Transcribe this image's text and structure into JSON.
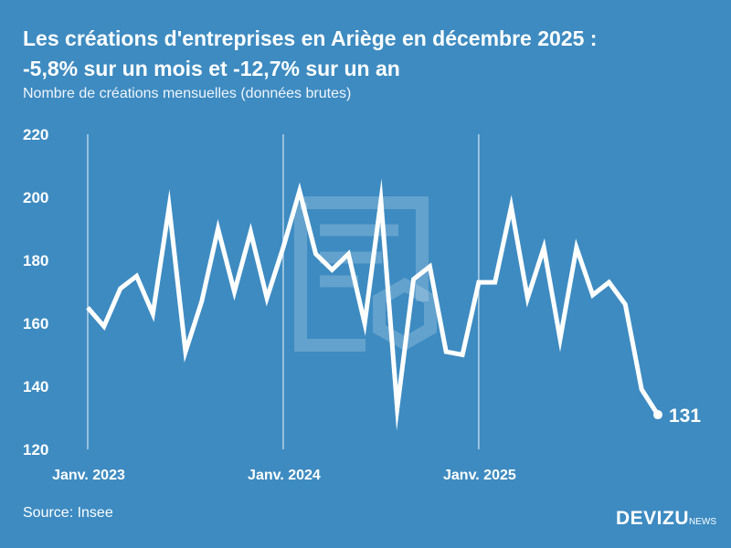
{
  "header": {
    "title_line1": "Les créations d'entreprises en Ariège en décembre 2025 :",
    "title_line2": "-5,8% sur un mois et -12,7% sur un an",
    "subtitle": "Nombre de créations mensuelles (données brutes)"
  },
  "footer": {
    "source": "Source: Insee",
    "logo_main": "DEVIZU",
    "logo_suffix": "NEWS"
  },
  "colors": {
    "background": "#3d8bc1",
    "line": "#ffffff",
    "grid": "#c9dded"
  },
  "chart_data": {
    "type": "line",
    "title": "Les créations d'entreprises en Ariège en décembre 2025 : -5,8% sur un mois et -12,7% sur un an",
    "subtitle": "Nombre de créations mensuelles (données brutes)",
    "ylim": [
      120,
      220
    ],
    "yticks": [
      120,
      140,
      160,
      180,
      200,
      220
    ],
    "xtick_labels": [
      {
        "index": 0,
        "label": "Janv. 2023"
      },
      {
        "index": 12,
        "label": "Janv. 2024"
      },
      {
        "index": 24,
        "label": "Janv. 2025"
      }
    ],
    "x": [
      "2023-01",
      "2023-02",
      "2023-03",
      "2023-04",
      "2023-05",
      "2023-06",
      "2023-07",
      "2023-08",
      "2023-09",
      "2023-10",
      "2023-11",
      "2023-12",
      "2024-01",
      "2024-02",
      "2024-03",
      "2024-04",
      "2024-05",
      "2024-06",
      "2024-07",
      "2024-08",
      "2024-09",
      "2024-10",
      "2024-11",
      "2024-12",
      "2025-01",
      "2025-02",
      "2025-03",
      "2025-04",
      "2025-05",
      "2025-06",
      "2025-07",
      "2025-08",
      "2025-09",
      "2025-10",
      "2025-11",
      "2025-12"
    ],
    "values": [
      165,
      159,
      171,
      175,
      163,
      197,
      151,
      167,
      190,
      170,
      189,
      168,
      184,
      202,
      182,
      177,
      182,
      160,
      199,
      133,
      174,
      178,
      151,
      150,
      173,
      173,
      197,
      168,
      184,
      155,
      184,
      169,
      173,
      166,
      139,
      131
    ],
    "last_label": "131",
    "grid": "vertical lines at January"
  }
}
